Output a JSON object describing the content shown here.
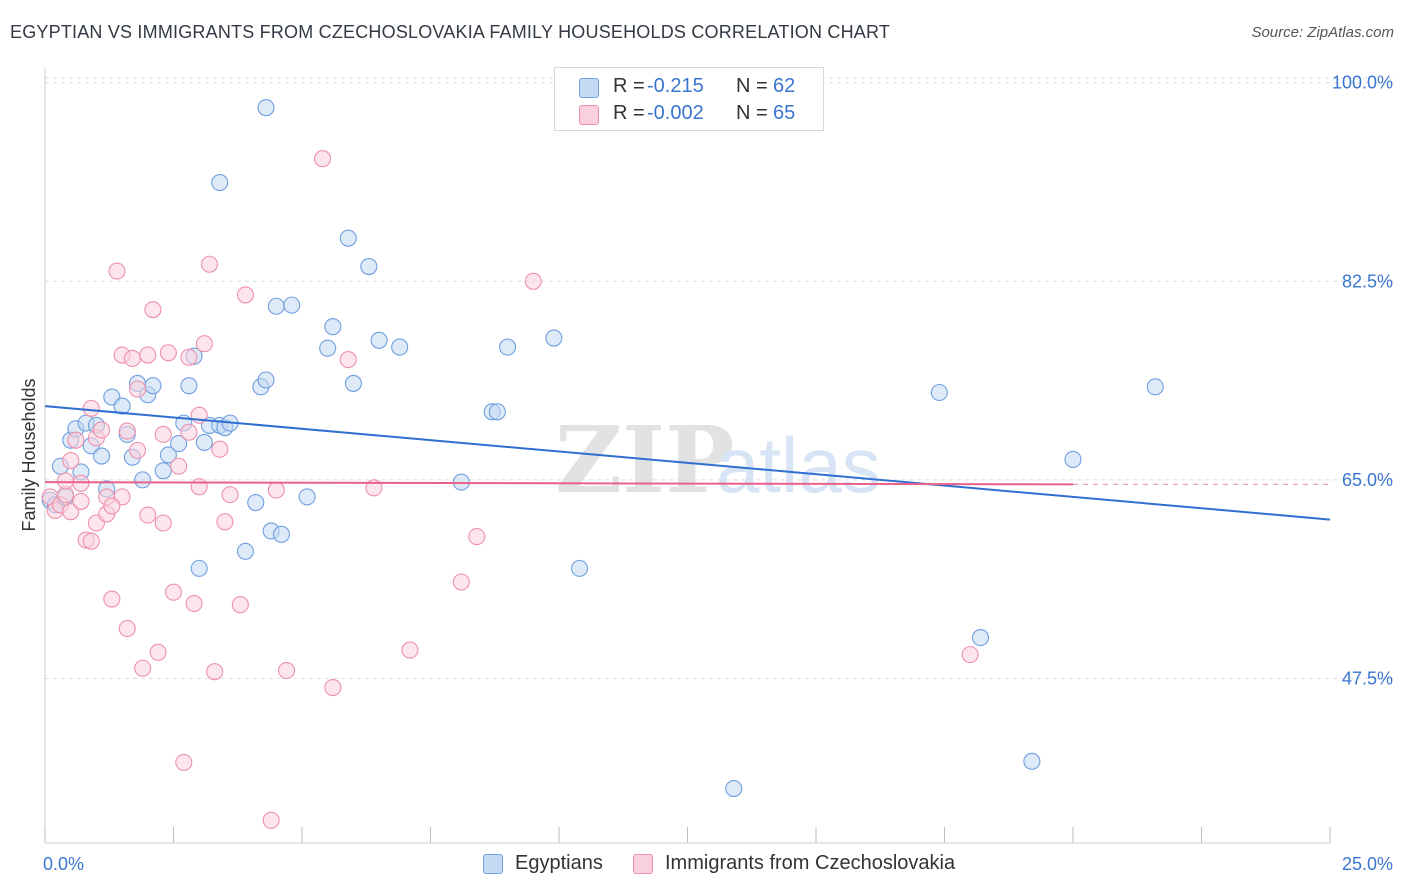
{
  "title": "EGYPTIAN VS IMMIGRANTS FROM CZECHOSLOVAKIA FAMILY HOUSEHOLDS CORRELATION CHART",
  "source": "Source: ZipAtlas.com",
  "watermark": {
    "zip": "ZIP",
    "atlas": "atlas"
  },
  "colors": {
    "egyptians": "#6f9fe0",
    "egyptians_fill": "#c5d9f3",
    "egyptians_line": "#2f6fd0",
    "czech": "#ee90ad",
    "czech_fill": "#f9d1dd",
    "czech_line": "#e9608a",
    "axis_text": "#3a76d0"
  },
  "legend_top": {
    "rows": [
      {
        "r_label": "R =",
        "r_value": "-0.215",
        "n_label": "N =",
        "n_value": "62"
      },
      {
        "r_label": "R =",
        "r_value": "-0.002",
        "n_label": "N =",
        "n_value": "65"
      }
    ]
  },
  "legend_bottom": {
    "items": [
      "Egyptians",
      "Immigrants from Czechoslovakia"
    ]
  },
  "chart_data": {
    "type": "scatter",
    "title": "EGYPTIAN VS IMMIGRANTS FROM CZECHOSLOVAKIA FAMILY HOUSEHOLDS CORRELATION CHART",
    "xlabel": "",
    "ylabel": "Family Households",
    "xlim": [
      0,
      25
    ],
    "ylim": [
      33,
      102
    ],
    "x_tick_labels": [
      "0.0%",
      "25.0%"
    ],
    "y_ticks": [
      47.5,
      65.0,
      82.5,
      100.0
    ],
    "y_tick_labels": [
      "47.5%",
      "65.0%",
      "82.5%",
      "100.0%"
    ],
    "grid": "horizontal dashed",
    "legend_position": "top-center",
    "series": [
      {
        "name": "Egyptians",
        "points": [
          [
            0.1,
            63.2
          ],
          [
            0.2,
            62.8
          ],
          [
            0.3,
            66.2
          ],
          [
            0.4,
            63.5
          ],
          [
            0.5,
            68.5
          ],
          [
            0.6,
            69.5
          ],
          [
            0.7,
            65.7
          ],
          [
            0.8,
            70.0
          ],
          [
            0.9,
            68.0
          ],
          [
            1.0,
            69.8
          ],
          [
            1.1,
            67.1
          ],
          [
            1.2,
            64.2
          ],
          [
            1.3,
            72.3
          ],
          [
            1.5,
            71.5
          ],
          [
            1.6,
            69.0
          ],
          [
            1.7,
            67.0
          ],
          [
            1.8,
            73.5
          ],
          [
            1.9,
            65.0
          ],
          [
            2.0,
            72.5
          ],
          [
            2.1,
            73.3
          ],
          [
            2.3,
            65.8
          ],
          [
            2.4,
            67.2
          ],
          [
            2.6,
            68.2
          ],
          [
            2.7,
            70.0
          ],
          [
            2.8,
            73.3
          ],
          [
            2.9,
            75.9
          ],
          [
            3.0,
            57.2
          ],
          [
            3.1,
            68.3
          ],
          [
            3.2,
            69.8
          ],
          [
            3.4,
            69.8
          ],
          [
            3.5,
            69.6
          ],
          [
            3.6,
            70.0
          ],
          [
            3.4,
            91.2
          ],
          [
            3.9,
            58.7
          ],
          [
            4.1,
            63.0
          ],
          [
            4.2,
            73.2
          ],
          [
            4.3,
            73.8
          ],
          [
            4.3,
            97.8
          ],
          [
            4.4,
            60.5
          ],
          [
            4.5,
            80.3
          ],
          [
            4.6,
            60.2
          ],
          [
            4.8,
            80.4
          ],
          [
            5.1,
            63.5
          ],
          [
            5.5,
            76.6
          ],
          [
            5.6,
            78.5
          ],
          [
            5.9,
            86.3
          ],
          [
            6.0,
            73.5
          ],
          [
            6.3,
            83.8
          ],
          [
            6.5,
            77.3
          ],
          [
            6.9,
            76.7
          ],
          [
            8.1,
            64.8
          ],
          [
            8.7,
            71.0
          ],
          [
            8.8,
            71.0
          ],
          [
            9.0,
            76.7
          ],
          [
            9.9,
            77.5
          ],
          [
            10.4,
            57.2
          ],
          [
            13.4,
            37.8
          ],
          [
            17.4,
            72.7
          ],
          [
            18.2,
            51.1
          ],
          [
            19.2,
            40.2
          ],
          [
            20.0,
            66.8
          ],
          [
            21.6,
            73.2
          ]
        ]
      },
      {
        "name": "Immigrants from Czechoslovakia",
        "points": [
          [
            0.1,
            63.5
          ],
          [
            0.2,
            62.3
          ],
          [
            0.3,
            62.8
          ],
          [
            0.4,
            63.7
          ],
          [
            0.5,
            62.2
          ],
          [
            0.5,
            66.7
          ],
          [
            0.6,
            68.5
          ],
          [
            0.7,
            63.1
          ],
          [
            0.7,
            64.7
          ],
          [
            0.8,
            59.7
          ],
          [
            0.9,
            71.3
          ],
          [
            1.0,
            68.7
          ],
          [
            1.0,
            61.2
          ],
          [
            1.1,
            69.4
          ],
          [
            1.2,
            62.0
          ],
          [
            1.2,
            63.5
          ],
          [
            1.3,
            54.5
          ],
          [
            1.4,
            83.4
          ],
          [
            1.5,
            76.0
          ],
          [
            1.6,
            69.3
          ],
          [
            1.6,
            51.9
          ],
          [
            1.7,
            75.7
          ],
          [
            1.8,
            73.0
          ],
          [
            1.8,
            67.6
          ],
          [
            1.9,
            48.4
          ],
          [
            2.0,
            76.0
          ],
          [
            2.1,
            80.0
          ],
          [
            2.2,
            49.8
          ],
          [
            2.3,
            69.0
          ],
          [
            2.3,
            61.2
          ],
          [
            2.4,
            76.2
          ],
          [
            2.5,
            55.1
          ],
          [
            2.6,
            66.2
          ],
          [
            2.7,
            40.1
          ],
          [
            2.8,
            69.2
          ],
          [
            2.8,
            75.8
          ],
          [
            2.9,
            54.1
          ],
          [
            3.0,
            64.4
          ],
          [
            3.1,
            77.0
          ],
          [
            3.2,
            84.0
          ],
          [
            3.3,
            48.1
          ],
          [
            3.4,
            67.7
          ],
          [
            3.5,
            61.3
          ],
          [
            3.6,
            63.7
          ],
          [
            3.8,
            54.0
          ],
          [
            3.9,
            81.3
          ],
          [
            4.4,
            35.0
          ],
          [
            4.5,
            64.1
          ],
          [
            4.7,
            48.2
          ],
          [
            5.4,
            93.3
          ],
          [
            5.6,
            46.7
          ],
          [
            5.9,
            75.6
          ],
          [
            6.4,
            64.3
          ],
          [
            7.1,
            50.0
          ],
          [
            8.1,
            56.0
          ],
          [
            8.4,
            60.0
          ],
          [
            9.5,
            82.5
          ],
          [
            11.0,
            100.3
          ],
          [
            18.0,
            49.6
          ],
          [
            1.5,
            63.5
          ],
          [
            0.9,
            59.6
          ],
          [
            2.0,
            61.9
          ],
          [
            3.0,
            70.7
          ],
          [
            1.3,
            62.7
          ],
          [
            0.4,
            64.9
          ]
        ]
      }
    ],
    "trend_lines": [
      {
        "series": "Egyptians",
        "x": [
          0,
          25
        ],
        "y": [
          71.5,
          61.5
        ]
      },
      {
        "series": "Immigrants from Czechoslovakia",
        "x": [
          0,
          20
        ],
        "y": [
          64.8,
          64.6
        ],
        "dashed_to": 25
      }
    ]
  }
}
